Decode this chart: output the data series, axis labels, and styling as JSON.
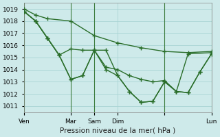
{
  "background_color": "#ceeaea",
  "grid_color": "#a8d4d4",
  "line_color": "#2a6e2a",
  "title": "Pression niveau de la mer( hPa )",
  "ylim": [
    1010.5,
    1019.5
  ],
  "yticks": [
    1011,
    1012,
    1013,
    1014,
    1015,
    1016,
    1017,
    1018,
    1019
  ],
  "xlim": [
    0,
    96
  ],
  "xtick_positions": [
    0,
    24,
    36,
    48,
    72,
    96
  ],
  "xtick_labels": [
    "Ven",
    "Mar",
    "Sam",
    "Dim",
    "",
    "Lun"
  ],
  "vline_positions": [
    0,
    24,
    36,
    72,
    96
  ],
  "series_top": {
    "x": [
      0,
      6,
      12,
      24,
      36,
      48,
      60,
      72,
      84,
      96
    ],
    "y": [
      1019.0,
      1018.5,
      1018.2,
      1018.0,
      1016.8,
      1016.2,
      1015.8,
      1015.5,
      1015.4,
      1015.5
    ]
  },
  "series_mid": {
    "x": [
      0,
      6,
      12,
      18,
      24,
      30,
      36,
      42,
      48,
      54,
      60,
      66,
      72,
      78,
      84,
      96
    ],
    "y": [
      1018.8,
      1018.0,
      1016.6,
      1015.2,
      1015.7,
      1015.6,
      1015.6,
      1014.2,
      1014.0,
      1013.5,
      1013.2,
      1013.0,
      1013.1,
      1012.2,
      1015.3,
      1015.4
    ]
  },
  "series_low": {
    "x": [
      0,
      6,
      12,
      18,
      24,
      30,
      36,
      42,
      48,
      54,
      60,
      66,
      72,
      78,
      84,
      90,
      96
    ],
    "y": [
      1018.8,
      1018.0,
      1016.6,
      1015.2,
      1013.2,
      1013.5,
      1015.6,
      1015.6,
      1013.5,
      1012.2,
      1011.3,
      1011.4,
      1013.0,
      1012.2,
      1012.1,
      1013.8,
      1015.3
    ]
  },
  "series_extra": {
    "x": [
      0,
      6,
      12,
      18,
      24,
      30,
      36,
      42,
      48,
      54,
      60,
      66,
      72,
      78,
      84,
      90,
      96
    ],
    "y": [
      1018.8,
      1018.0,
      1016.6,
      1015.2,
      1013.2,
      1013.5,
      1015.6,
      1014.0,
      1013.5,
      1012.2,
      1011.3,
      1011.4,
      1013.0,
      1012.2,
      1012.1,
      1013.8,
      1015.3
    ]
  },
  "marker": "+",
  "markersize": 4,
  "linewidth": 1.0,
  "fontsize_label": 7.5,
  "fontsize_tick": 6.5
}
